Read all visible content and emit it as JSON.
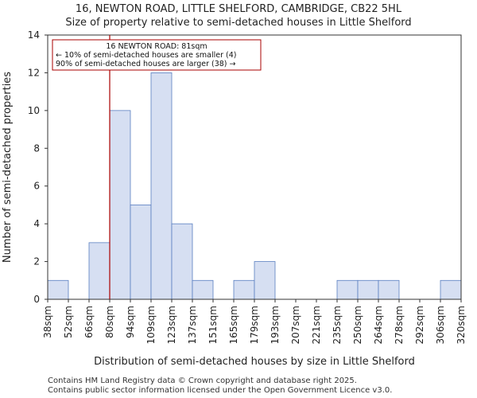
{
  "chart_data": {
    "type": "bar",
    "title_line1": "16, NEWTON ROAD, LITTLE SHELFORD, CAMBRIDGE, CB22 5HL",
    "title_line2": "Size of property relative to semi-detached houses in Little Shelford",
    "xlabel": "Distribution of semi-detached houses by size in Little Shelford",
    "ylabel": "Number of semi-detached properties",
    "categories": [
      "38sqm",
      "52sqm",
      "66sqm",
      "80sqm",
      "94sqm",
      "109sqm",
      "123sqm",
      "137sqm",
      "151sqm",
      "165sqm",
      "179sqm",
      "193sqm",
      "207sqm",
      "221sqm",
      "235sqm",
      "250sqm",
      "264sqm",
      "278sqm",
      "292sqm",
      "306sqm",
      "320sqm"
    ],
    "values": [
      1,
      0,
      3,
      10,
      5,
      12,
      4,
      1,
      0,
      1,
      2,
      0,
      0,
      0,
      1,
      1,
      1,
      0,
      0,
      1,
      0
    ],
    "ylim": [
      0,
      14
    ],
    "yticks": [
      0,
      2,
      4,
      6,
      8,
      10,
      12,
      14
    ],
    "grid": false,
    "bar_color": "#d6dff2",
    "bar_edge_color": "#5a7fc0",
    "marker": {
      "value_index": 3,
      "color": "#aa0000",
      "annotation": {
        "line1": "16 NEWTON ROAD: 81sqm",
        "line2": "← 10% of semi-detached houses are smaller (4)",
        "line3": "90% of semi-detached houses are larger (38) →"
      }
    },
    "footer_line1": "Contains HM Land Registry data © Crown copyright and database right 2025.",
    "footer_line2": "Contains public sector information licensed under the Open Government Licence v3.0."
  }
}
